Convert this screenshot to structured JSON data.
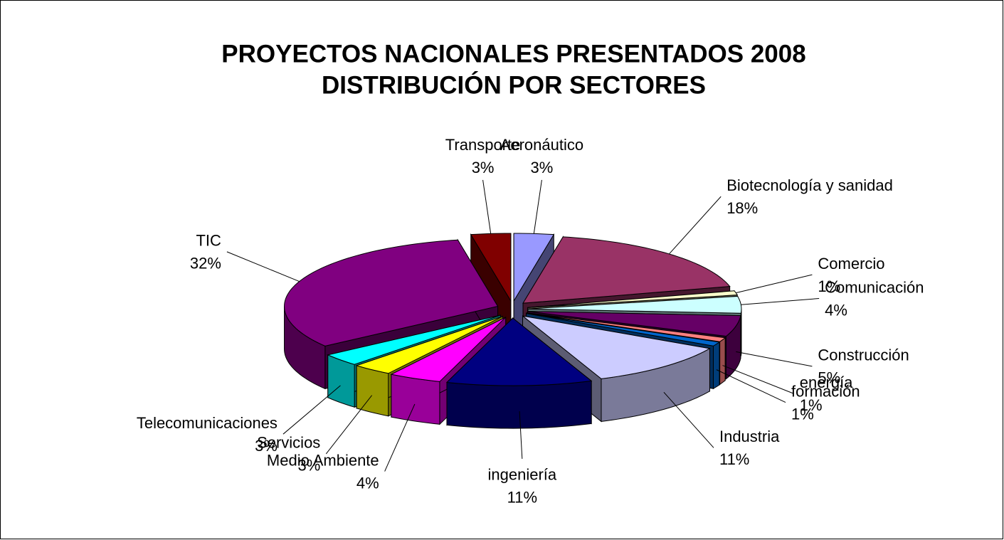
{
  "chart_data": {
    "type": "pie3d",
    "title": [
      "PROYECTOS NACIONALES PRESENTADOS 2008",
      "DISTRIBUCIÓN POR SECTORES"
    ],
    "categories": [
      "Aeronáutico",
      "Biotecnología y sanidad",
      "Comercio",
      "Comunicación",
      "Construcción",
      "energía",
      "formación",
      "Industria",
      "ingeniería",
      "Medio Ambiente",
      "Servicios",
      "Telecomunicaciones",
      "TIC",
      "Transporte"
    ],
    "values": [
      3,
      18,
      1,
      4,
      5,
      1,
      1,
      11,
      11,
      4,
      3,
      3,
      32,
      3
    ],
    "value_labels": [
      "3%",
      "18%",
      "1%",
      "4%",
      "5%",
      "1%",
      "1%",
      "11%",
      "11%",
      "4%",
      "3%",
      "3%",
      "32%",
      "3%"
    ],
    "colors": [
      "#9999ff",
      "#993366",
      "#ffffcc",
      "#ccffff",
      "#660066",
      "#ff8080",
      "#0066cc",
      "#ccccff",
      "#000080",
      "#ff00ff",
      "#ffff00",
      "#00ffff",
      "#800080",
      "#800000"
    ]
  }
}
